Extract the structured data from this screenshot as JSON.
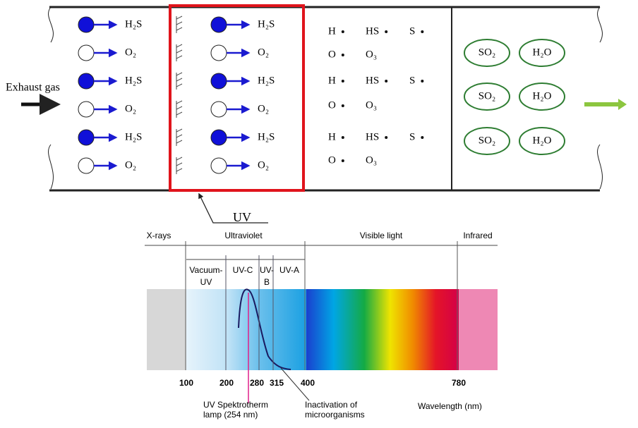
{
  "pipe": {
    "inlet_label": "Exhaust gas",
    "inlet_molecules": [
      "H₂S",
      "O₂",
      "H₂S",
      "O₂",
      "H₂S",
      "O₂"
    ],
    "uv_zone_molecules": [
      "H₂S",
      "O₂",
      "H₂S",
      "O₂",
      "H₂S",
      "O₂"
    ],
    "radicals": [
      [
        "H",
        "HS",
        "S"
      ],
      [
        "O",
        "O₃"
      ],
      [
        "H",
        "HS",
        "S"
      ],
      [
        "O",
        "O₃"
      ],
      [
        "H",
        "HS",
        "S"
      ],
      [
        "O",
        "O₃"
      ]
    ],
    "products": [
      [
        "SO₂",
        "H₂O"
      ],
      [
        "SO₂",
        "H₂O"
      ],
      [
        "SO₂",
        "H₂O"
      ]
    ],
    "uv_label": "UV"
  },
  "spectrum": {
    "regions": [
      "X-rays",
      "Ultraviolet",
      "Visible light",
      "Infrared"
    ],
    "uv_bands": [
      [
        "Vacuum-",
        "UV"
      ],
      [
        "UV-C"
      ],
      [
        "UV-",
        "B"
      ],
      [
        "UV-A"
      ]
    ],
    "ticks": [
      100,
      200,
      280,
      315,
      400,
      780
    ],
    "lamp_label": [
      "UV Spektrotherm",
      "lamp (254 nm)"
    ],
    "inactivation_label": [
      "Inactivation of",
      "microorganisms"
    ],
    "axis_label": "Wavelength (nm)"
  }
}
